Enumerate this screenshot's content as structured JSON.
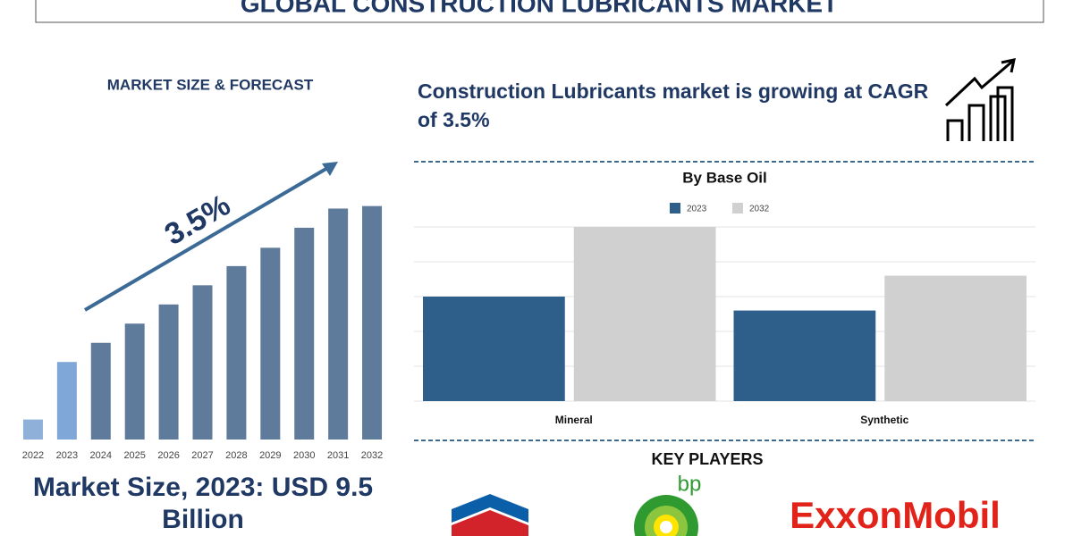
{
  "header": {
    "title": "GLOBAL CONSTRUCTION LUBRICANTS MARKET"
  },
  "left": {
    "heading": "MARKET SIZE & FORECAST",
    "market_size": "Market Size, 2023: USD 9.5 Billion"
  },
  "right": {
    "headline": "Construction Lubricants market is growing at CAGR of 3.5%"
  },
  "key_players": {
    "title": "KEY PLAYERS",
    "logos": [
      "bp",
      "ExxonMobil"
    ]
  },
  "chart_data": [
    {
      "type": "bar",
      "annotation": "3.5%",
      "categories": [
        "2022",
        "2023",
        "2024",
        "2025",
        "2026",
        "2027",
        "2028",
        "2029",
        "2030",
        "2031",
        "2032"
      ],
      "values": [
        24,
        93,
        116,
        139,
        162,
        185,
        208,
        230,
        254,
        277,
        280
      ],
      "colors": [
        "#8fb0d8",
        "#7fa7d8",
        "#5f7b9b",
        "#5f7b9b",
        "#5f7b9b",
        "#5f7b9b",
        "#5f7b9b",
        "#5f7b9b",
        "#5f7b9b",
        "#5f7b9b",
        "#5f7b9b"
      ],
      "ylim": [
        0,
        300
      ]
    },
    {
      "type": "bar",
      "title": "By Base Oil",
      "categories": [
        "Mineral",
        "Synthetic"
      ],
      "series": [
        {
          "name": "2023",
          "color": "#2e5f8a",
          "values": [
            3,
            2.6
          ]
        },
        {
          "name": "2032",
          "color": "#d0d0d0",
          "values": [
            5,
            3.6
          ]
        }
      ],
      "ylim": [
        0,
        5
      ],
      "yticks": [
        0,
        1,
        2,
        3,
        4,
        5
      ],
      "grid": true,
      "legend": "top"
    }
  ]
}
